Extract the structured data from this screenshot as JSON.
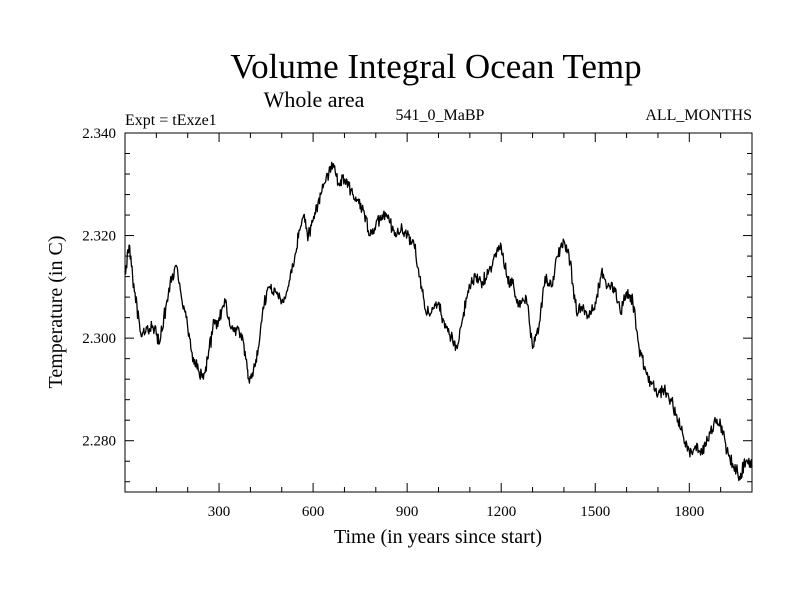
{
  "colors": {
    "background": "#ffffff",
    "foreground": "#000000"
  },
  "chart_data": {
    "type": "line",
    "title": "Volume Integral Ocean Temp",
    "subtitle": "Whole area",
    "experiment_label": "Expt = tExze1",
    "run_label": "541_0_MaBP",
    "months_label": "ALL_MONTHS",
    "xlabel": "Time (in years since start)",
    "ylabel": "Temperature (in C)",
    "xlim": [
      0,
      2000
    ],
    "ylim": [
      2.27,
      2.34
    ],
    "x_ticks": [
      300,
      600,
      900,
      1200,
      1500,
      1800
    ],
    "x_tick_labels": [
      "300",
      "600",
      "900",
      "1200",
      "1500",
      "1800"
    ],
    "y_ticks": [
      2.28,
      2.3,
      2.32,
      2.34
    ],
    "y_tick_labels": [
      "2.280",
      "2.300",
      "2.320",
      "2.340"
    ],
    "series": [
      {
        "name": "Volume Integral Ocean Temp",
        "x": [
          0,
          15,
          30,
          50,
          70,
          90,
          110,
          130,
          150,
          165,
          180,
          195,
          210,
          230,
          250,
          265,
          280,
          300,
          320,
          340,
          355,
          370,
          385,
          395,
          410,
          425,
          440,
          460,
          480,
          500,
          520,
          540,
          555,
          570,
          585,
          600,
          615,
          630,
          650,
          665,
          680,
          700,
          720,
          740,
          760,
          780,
          800,
          820,
          840,
          860,
          880,
          900,
          920,
          940,
          960,
          980,
          1000,
          1020,
          1040,
          1060,
          1080,
          1100,
          1120,
          1140,
          1160,
          1180,
          1200,
          1220,
          1240,
          1260,
          1280,
          1300,
          1320,
          1340,
          1360,
          1380,
          1400,
          1420,
          1440,
          1460,
          1480,
          1500,
          1520,
          1540,
          1560,
          1580,
          1600,
          1620,
          1640,
          1660,
          1680,
          1700,
          1720,
          1740,
          1760,
          1780,
          1800,
          1820,
          1840,
          1860,
          1880,
          1900,
          1920,
          1940,
          1960,
          1980,
          2000
        ],
        "y": [
          2.313,
          2.318,
          2.309,
          2.301,
          2.302,
          2.302,
          2.299,
          2.306,
          2.312,
          2.314,
          2.308,
          2.304,
          2.298,
          2.294,
          2.292,
          2.296,
          2.302,
          2.304,
          2.307,
          2.302,
          2.302,
          2.301,
          2.296,
          2.292,
          2.294,
          2.298,
          2.306,
          2.31,
          2.309,
          2.307,
          2.31,
          2.315,
          2.321,
          2.324,
          2.32,
          2.323,
          2.326,
          2.33,
          2.332,
          2.334,
          2.33,
          2.331,
          2.329,
          2.327,
          2.325,
          2.32,
          2.322,
          2.324,
          2.324,
          2.32,
          2.321,
          2.32,
          2.319,
          2.312,
          2.305,
          2.306,
          2.307,
          2.302,
          2.3,
          2.298,
          2.305,
          2.31,
          2.312,
          2.311,
          2.313,
          2.316,
          2.318,
          2.312,
          2.31,
          2.306,
          2.308,
          2.298,
          2.302,
          2.312,
          2.31,
          2.316,
          2.319,
          2.315,
          2.305,
          2.306,
          2.304,
          2.307,
          2.313,
          2.31,
          2.31,
          2.305,
          2.309,
          2.307,
          2.298,
          2.294,
          2.291,
          2.289,
          2.29,
          2.288,
          2.285,
          2.281,
          2.278,
          2.279,
          2.278,
          2.28,
          2.284,
          2.283,
          2.278,
          2.275,
          2.273,
          2.276,
          2.275
        ]
      }
    ]
  }
}
